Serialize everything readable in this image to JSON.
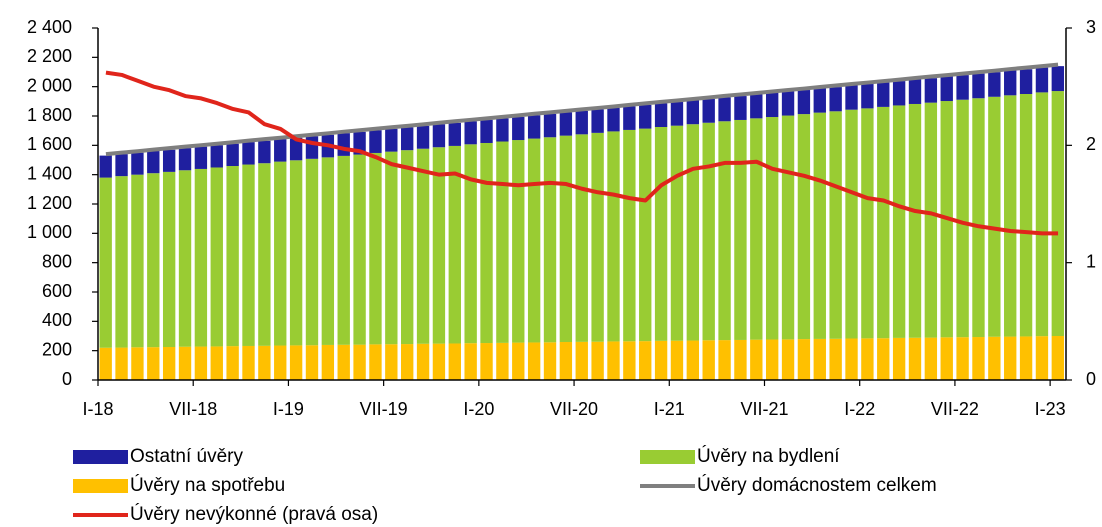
{
  "chart_data": {
    "type": "bar",
    "categories": [
      "I-18",
      null,
      null,
      null,
      null,
      null,
      "VII-18",
      null,
      null,
      null,
      null,
      null,
      "I-19",
      null,
      null,
      null,
      null,
      null,
      "VII-19",
      null,
      null,
      null,
      null,
      null,
      "I-20",
      null,
      null,
      null,
      null,
      null,
      "VII-20",
      null,
      null,
      null,
      null,
      null,
      "I-21",
      null,
      null,
      null,
      null,
      null,
      "VII-21",
      null,
      null,
      null,
      null,
      null,
      "I-22",
      null,
      null,
      null,
      null,
      null,
      "VII-22",
      null,
      null,
      null,
      null,
      null,
      "I-23"
    ],
    "series": [
      {
        "name": "Úvěry na spotřebu",
        "type": "bar",
        "color": "#ffc000",
        "values": [
          220,
          221,
          223,
          224,
          225,
          227,
          228,
          229,
          231,
          232,
          233,
          235,
          236,
          237,
          239,
          240,
          241,
          243,
          244,
          245,
          247,
          248,
          249,
          251,
          252,
          253,
          255,
          256,
          257,
          259,
          260,
          261,
          263,
          264,
          265,
          267,
          268,
          269,
          271,
          272,
          273,
          275,
          276,
          277,
          279,
          280,
          281,
          283,
          284,
          285,
          287,
          288,
          289,
          291,
          292,
          293,
          295,
          296,
          297,
          299,
          300
        ]
      },
      {
        "name": "Úvěry na bydlení",
        "type": "bar",
        "color": "#99cc33",
        "values": [
          1160,
          1169,
          1177,
          1186,
          1194,
          1203,
          1211,
          1220,
          1228,
          1237,
          1245,
          1254,
          1262,
          1271,
          1279,
          1288,
          1296,
          1305,
          1313,
          1322,
          1330,
          1339,
          1347,
          1356,
          1364,
          1373,
          1381,
          1390,
          1398,
          1407,
          1415,
          1424,
          1432,
          1441,
          1449,
          1458,
          1466,
          1475,
          1483,
          1492,
          1500,
          1509,
          1517,
          1526,
          1534,
          1543,
          1551,
          1560,
          1568,
          1577,
          1585,
          1594,
          1602,
          1611,
          1619,
          1628,
          1636,
          1645,
          1653,
          1662,
          1670
        ]
      },
      {
        "name": "Ostatní úvěry",
        "type": "bar",
        "color": "#1f1f9f",
        "values": [
          150,
          150,
          150,
          151,
          151,
          151,
          152,
          152,
          152,
          153,
          153,
          153,
          154,
          154,
          154,
          155,
          155,
          155,
          156,
          156,
          156,
          157,
          157,
          157,
          158,
          158,
          158,
          159,
          159,
          159,
          160,
          160,
          160,
          161,
          161,
          161,
          162,
          162,
          162,
          163,
          163,
          163,
          164,
          164,
          164,
          165,
          165,
          165,
          166,
          166,
          166,
          167,
          167,
          167,
          168,
          168,
          168,
          169,
          169,
          169,
          170
        ]
      },
      {
        "name": "Úvěry domácnostem celkem",
        "type": "line",
        "color": "#7f7f7f",
        "values": [
          1540,
          1550,
          1560,
          1571,
          1581,
          1591,
          1601,
          1611,
          1621,
          1632,
          1642,
          1652,
          1662,
          1672,
          1682,
          1693,
          1703,
          1713,
          1723,
          1733,
          1743,
          1754,
          1764,
          1774,
          1784,
          1794,
          1804,
          1815,
          1825,
          1835,
          1845,
          1855,
          1865,
          1876,
          1886,
          1896,
          1906,
          1916,
          1926,
          1937,
          1947,
          1957,
          1967,
          1977,
          1987,
          1998,
          2008,
          2018,
          2028,
          2038,
          2048,
          2059,
          2069,
          2079,
          2089,
          2099,
          2109,
          2120,
          2130,
          2140,
          2150
        ]
      },
      {
        "name": "Úvěry nevýkonné (pravá osa)",
        "type": "line",
        "axis": "y2",
        "color": "#e0251b",
        "values": [
          2.62,
          2.6,
          2.55,
          2.5,
          2.47,
          2.42,
          2.4,
          2.36,
          2.31,
          2.28,
          2.18,
          2.14,
          2.05,
          2.02,
          2.0,
          1.97,
          1.95,
          1.9,
          1.84,
          1.81,
          1.78,
          1.75,
          1.76,
          1.71,
          1.68,
          1.67,
          1.66,
          1.67,
          1.68,
          1.67,
          1.63,
          1.6,
          1.58,
          1.55,
          1.53,
          1.66,
          1.74,
          1.8,
          1.82,
          1.85,
          1.85,
          1.86,
          1.8,
          1.77,
          1.74,
          1.7,
          1.65,
          1.6,
          1.55,
          1.53,
          1.48,
          1.44,
          1.42,
          1.38,
          1.34,
          1.31,
          1.29,
          1.27,
          1.26,
          1.25,
          1.25
        ]
      }
    ],
    "ylim": [
      0,
      2400
    ],
    "yticks": [
      0,
      200,
      400,
      600,
      800,
      {
        "value": 1000,
        "label": "1 000"
      },
      {
        "value": 1200,
        "label": "1 200"
      },
      {
        "value": 1400,
        "label": "1 400"
      },
      {
        "value": 1600,
        "label": "1 600"
      },
      {
        "value": 1800,
        "label": "1 800"
      },
      {
        "value": 2000,
        "label": "2 000"
      },
      {
        "value": 2200,
        "label": "2 200"
      },
      {
        "value": 2400,
        "label": "2 400"
      }
    ],
    "y2lim": [
      0,
      3
    ],
    "y2ticks": [
      0,
      1,
      2,
      3
    ],
    "grid": false
  }
}
